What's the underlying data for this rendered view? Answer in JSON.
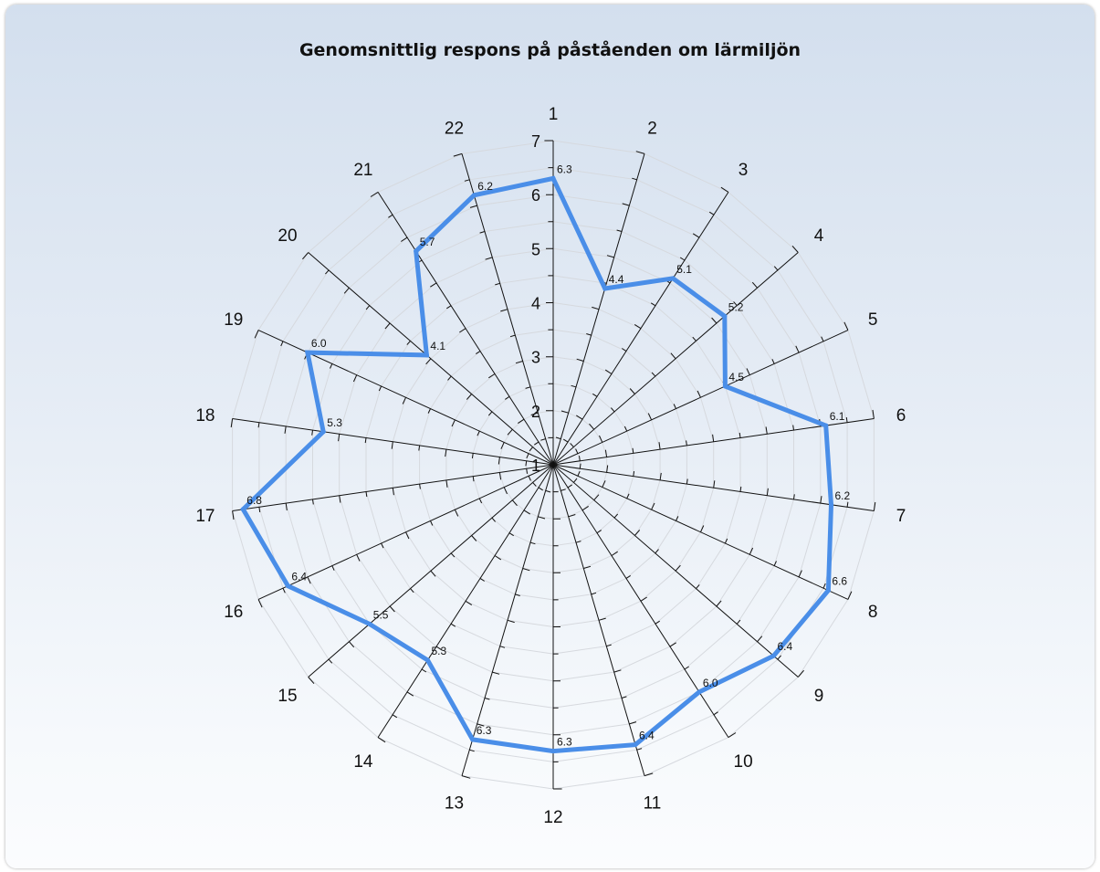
{
  "chart_data": {
    "type": "radar",
    "title": "Genomsnittlig respons på påståenden om lärmiljön",
    "categories": [
      "1",
      "2",
      "3",
      "4",
      "5",
      "6",
      "7",
      "8",
      "9",
      "10",
      "11",
      "12",
      "13",
      "14",
      "15",
      "16",
      "17",
      "18",
      "19",
      "20",
      "21",
      "22"
    ],
    "series": [
      {
        "values": [
          6.3,
          4.4,
          5.1,
          5.2,
          4.5,
          6.1,
          6.2,
          6.6,
          6.4,
          6.0,
          6.4,
          6.3,
          6.3,
          5.3,
          5.5,
          6.4,
          6.8,
          5.3,
          6.0,
          4.1,
          5.7,
          6.2
        ],
        "color": "#4a8ee8"
      }
    ],
    "data_labels": [
      "6.3",
      "4.4",
      "5.1",
      "5.2",
      "4.5",
      "6.1",
      "6.2",
      "6.6",
      "6.4",
      "6.0",
      "6.4",
      "6.3",
      "6.3",
      "5.3",
      "5.5",
      "6.4",
      "6.8",
      "5.3",
      "6.0",
      "4.1",
      "5.7",
      "6.2"
    ],
    "radial_range": [
      1,
      7
    ],
    "radial_ticks": [
      "1",
      "2",
      "3",
      "4",
      "5",
      "6",
      "7"
    ],
    "grid": true,
    "gridline_color": "#d6d9de",
    "spoke_color": "#111111"
  }
}
